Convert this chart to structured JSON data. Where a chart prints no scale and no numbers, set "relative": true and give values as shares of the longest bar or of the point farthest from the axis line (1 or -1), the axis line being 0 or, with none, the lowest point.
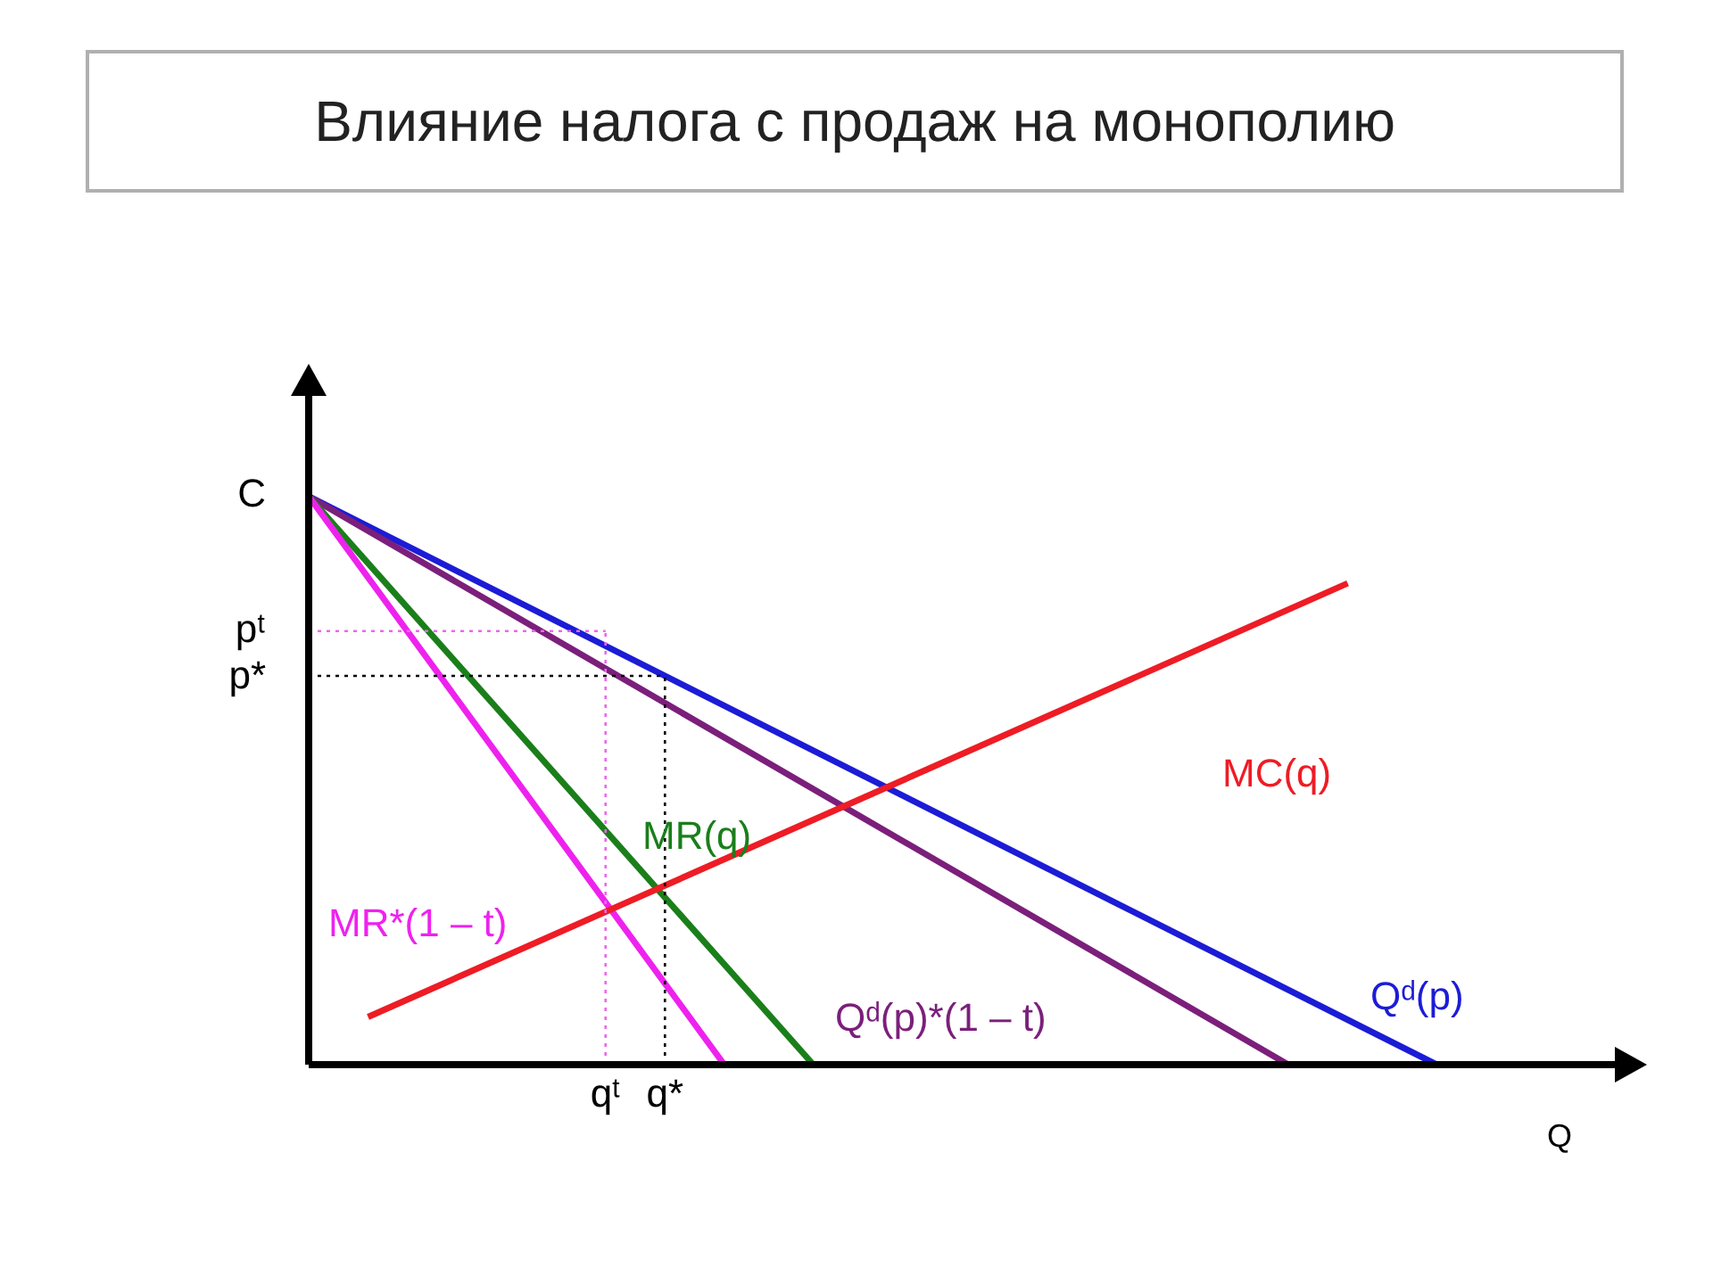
{
  "chart_data": {
    "type": "line",
    "title": "Влияние налога с продаж на монополию",
    "xlabel": "Q",
    "relative": true,
    "categories": [
      null,
      null,
      null,
      null,
      null,
      null,
      null,
      null,
      null,
      null,
      "qᵗ",
      null,
      "q*",
      null,
      null,
      null,
      null,
      null,
      null,
      null,
      null,
      null,
      null,
      null,
      null,
      null,
      null,
      null,
      null,
      null,
      null,
      null,
      null,
      null,
      null,
      null,
      null,
      null,
      null,
      null,
      null,
      null,
      null,
      null,
      null
    ],
    "annotations": [
      "C",
      "pᵗ",
      "p*"
    ],
    "grid": false,
    "legend": false,
    "marker": "none",
    "line_style": "solid",
    "series": [
      {
        "name": "Qᵈ(p)",
        "color": "#1c1cd6",
        "values": [
          1,
          null,
          null,
          null,
          null,
          null,
          null,
          null,
          null,
          null,
          null,
          null,
          null,
          null,
          null,
          null,
          null,
          null,
          null,
          null,
          null,
          null,
          null,
          null,
          null,
          null,
          null,
          null,
          null,
          null,
          null,
          null,
          null,
          null,
          null,
          null,
          null,
          null,
          0,
          null,
          null,
          null,
          null,
          null,
          null
        ]
      },
      {
        "name": "Qᵈ(p)*(1 – t)",
        "color": "#7b1f7b",
        "values": [
          1,
          null,
          null,
          null,
          null,
          null,
          null,
          null,
          null,
          null,
          null,
          null,
          null,
          null,
          null,
          null,
          null,
          null,
          null,
          null,
          null,
          null,
          null,
          null,
          null,
          null,
          null,
          null,
          null,
          null,
          null,
          null,
          null,
          0,
          null,
          null,
          null,
          null,
          null,
          null,
          null,
          null,
          null,
          null,
          null
        ]
      },
      {
        "name": "MR(q)",
        "color": "#1a7f1a",
        "values": [
          1,
          null,
          null,
          null,
          null,
          null,
          null,
          null,
          null,
          null,
          null,
          null,
          null,
          null,
          null,
          null,
          null,
          0,
          null,
          null,
          null,
          null,
          null,
          null,
          null,
          null,
          null,
          null,
          null,
          null,
          null,
          null,
          null,
          null,
          null,
          null,
          null,
          null,
          null,
          null,
          null,
          null,
          null,
          null,
          null
        ]
      },
      {
        "name": "MR*(1 – t)",
        "color": "#ee22ee",
        "values": [
          1,
          null,
          null,
          null,
          null,
          null,
          null,
          null,
          null,
          null,
          null,
          null,
          null,
          null,
          0,
          null,
          null,
          null,
          null,
          null,
          null,
          null,
          null,
          null,
          null,
          null,
          null,
          null,
          null,
          null,
          null,
          null,
          null,
          null,
          null,
          null,
          null,
          null,
          null,
          null,
          null,
          null,
          null,
          null,
          null
        ]
      },
      {
        "name": "MC(q)",
        "color": "#ee1c25",
        "values": [
          null,
          null,
          0.084,
          null,
          null,
          null,
          null,
          null,
          null,
          null,
          null,
          null,
          null,
          null,
          null,
          null,
          null,
          null,
          null,
          null,
          null,
          null,
          null,
          null,
          null,
          null,
          null,
          null,
          null,
          null,
          null,
          null,
          null,
          null,
          null,
          0.847,
          null,
          null,
          null,
          null,
          null,
          null,
          null,
          null,
          null
        ]
      },
      {
        "color": "#ee66ee",
        "line_style": "dotted",
        "values": [
          0.763,
          null,
          null,
          null,
          null,
          null,
          null,
          null,
          null,
          null,
          0.763,
          null,
          null,
          null,
          null,
          null,
          null,
          null,
          null,
          null,
          null,
          null,
          null,
          null,
          null,
          null,
          null,
          null,
          null,
          null,
          null,
          null,
          null,
          null,
          null,
          null,
          null,
          null,
          null,
          null,
          null,
          null,
          null,
          null,
          null
        ]
      },
      {
        "color": "#ee66ee",
        "line_style": "dotted",
        "x": [
          "qᵗ",
          "qᵗ"
        ],
        "values": [
          0,
          0.763
        ]
      },
      {
        "color": "#000000",
        "line_style": "dotted",
        "values": [
          0.684,
          null,
          null,
          null,
          null,
          null,
          null,
          null,
          null,
          null,
          null,
          null,
          0.684,
          null,
          null,
          null,
          null,
          null,
          null,
          null,
          null,
          null,
          null,
          null,
          null,
          null,
          null,
          null,
          null,
          null,
          null,
          null,
          null,
          null,
          null,
          null,
          null,
          null,
          null,
          null,
          null,
          null,
          null,
          null,
          null
        ]
      },
      {
        "color": "#000000",
        "line_style": "dotted",
        "x": [
          "q*",
          "q*"
        ],
        "values": [
          0,
          0.684
        ]
      }
    ]
  }
}
